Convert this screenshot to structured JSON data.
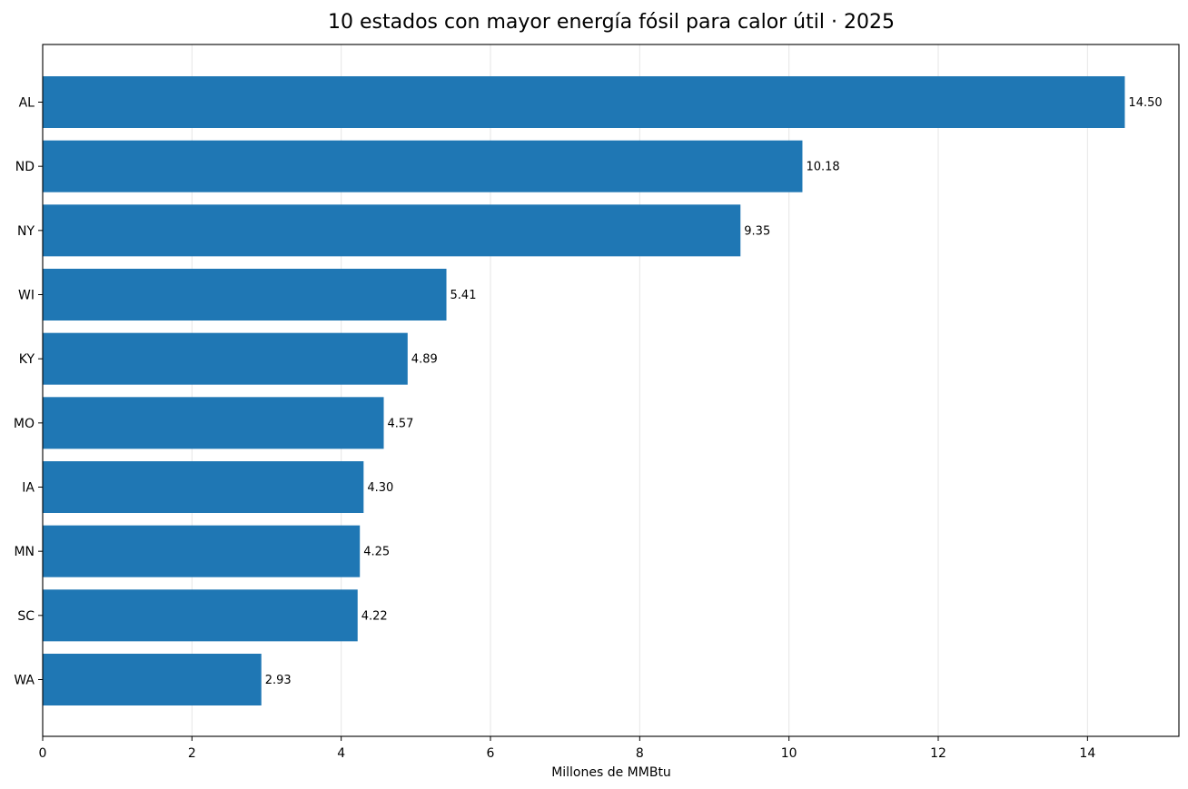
{
  "chart_data": {
    "type": "bar",
    "orientation": "horizontal",
    "title": "10 estados con mayor energía fósil para calor útil · 2025",
    "xlabel": "Millones de MMBtu",
    "ylabel": "",
    "categories": [
      "AL",
      "ND",
      "NY",
      "WI",
      "KY",
      "MO",
      "IA",
      "MN",
      "SC",
      "WA"
    ],
    "values": [
      14.5,
      10.18,
      9.35,
      5.41,
      4.89,
      4.57,
      4.3,
      4.25,
      4.22,
      2.93
    ],
    "value_labels": [
      "14.50",
      "10.18",
      "9.35",
      "5.41",
      "4.89",
      "4.57",
      "4.30",
      "4.25",
      "4.22",
      "2.93"
    ],
    "xlim": [
      0,
      15.225
    ],
    "xticks": [
      0,
      2,
      4,
      6,
      8,
      10,
      12,
      14
    ],
    "xtick_labels": [
      "0",
      "2",
      "4",
      "6",
      "8",
      "10",
      "12",
      "14"
    ],
    "grid": "vertical",
    "legend": "none",
    "bar_color": "#1f77b4"
  }
}
